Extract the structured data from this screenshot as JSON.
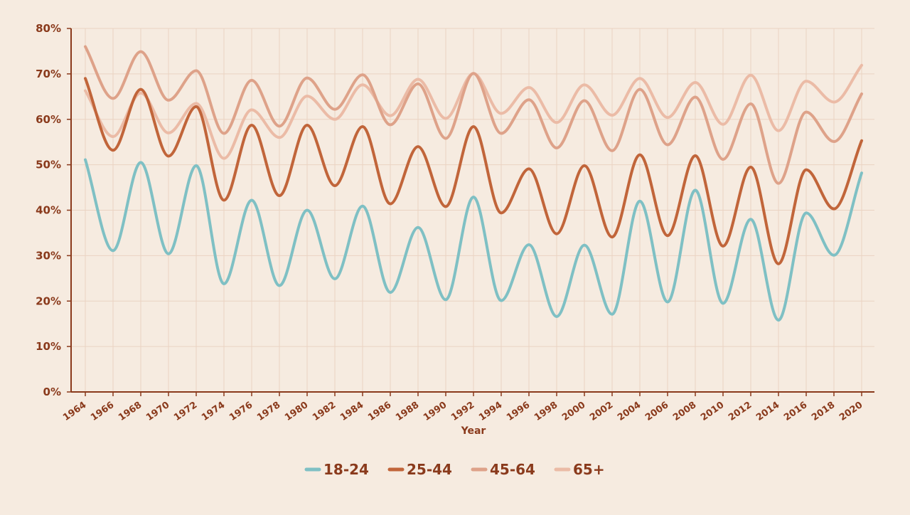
{
  "chart_data": {
    "type": "line",
    "title": "",
    "xlabel": "Year",
    "ylabel": "",
    "x": [
      1964,
      1966,
      1968,
      1970,
      1972,
      1974,
      1976,
      1978,
      1980,
      1982,
      1984,
      1986,
      1988,
      1990,
      1992,
      1994,
      1996,
      1998,
      2000,
      2002,
      2004,
      2006,
      2008,
      2010,
      2012,
      2014,
      2016,
      2018,
      2020
    ],
    "x_tick_labels": [
      "1964",
      "1966",
      "1968",
      "1970",
      "1972",
      "1974",
      "1976",
      "1978",
      "1980",
      "1982",
      "1984",
      "1986",
      "1988",
      "1990",
      "1992",
      "1994",
      "1996",
      "1998",
      "2000",
      "2002",
      "2004",
      "2006",
      "2008",
      "2010",
      "2012",
      "2014",
      "2016",
      "2018",
      "2020"
    ],
    "ylim": [
      0,
      80
    ],
    "y_ticks": [
      0,
      10,
      20,
      30,
      40,
      50,
      60,
      70,
      80
    ],
    "y_tick_labels": [
      "0%",
      "10%",
      "20%",
      "30%",
      "40%",
      "50%",
      "60%",
      "70%",
      "80%"
    ],
    "grid": true,
    "legend_position": "bottom-center",
    "series": [
      {
        "name": "18-24",
        "color": "#7fc0c4",
        "values": [
          51.1,
          31.1,
          50.5,
          30.4,
          49.8,
          23.8,
          42.2,
          23.4,
          40.0,
          24.9,
          40.9,
          21.9,
          36.2,
          20.3,
          42.9,
          20.1,
          32.4,
          16.6,
          32.3,
          17.1,
          42.0,
          19.8,
          44.4,
          19.5,
          38.0,
          15.8,
          39.4,
          30.1,
          48.2
        ]
      },
      {
        "name": "25-44",
        "color": "#c1653a",
        "values": [
          69.0,
          53.2,
          66.6,
          51.9,
          62.8,
          42.2,
          58.7,
          43.2,
          58.7,
          45.4,
          58.4,
          41.4,
          54.0,
          40.8,
          58.4,
          39.4,
          49.1,
          34.8,
          49.8,
          34.1,
          52.2,
          34.4,
          52.0,
          32.1,
          49.5,
          28.2,
          48.9,
          40.3,
          55.3
        ]
      },
      {
        "name": "45-64",
        "color": "#dea289",
        "values": [
          76.0,
          64.6,
          74.9,
          64.2,
          70.7,
          56.9,
          68.6,
          58.5,
          69.1,
          62.2,
          69.8,
          58.8,
          67.8,
          55.8,
          70.1,
          56.9,
          64.3,
          53.7,
          64.1,
          53.1,
          66.6,
          54.4,
          64.9,
          51.2,
          63.4,
          45.9,
          61.6,
          55.1,
          65.6
        ]
      },
      {
        "name": "65+",
        "color": "#ebbba6",
        "values": [
          66.3,
          56.2,
          65.8,
          57.0,
          63.5,
          51.4,
          62.1,
          56.0,
          65.1,
          60.0,
          67.6,
          60.8,
          68.8,
          60.2,
          70.1,
          61.3,
          67.0,
          59.3,
          67.6,
          60.9,
          69.0,
          60.4,
          68.1,
          58.9,
          69.7,
          57.5,
          68.4,
          63.8,
          71.9
        ]
      }
    ]
  }
}
